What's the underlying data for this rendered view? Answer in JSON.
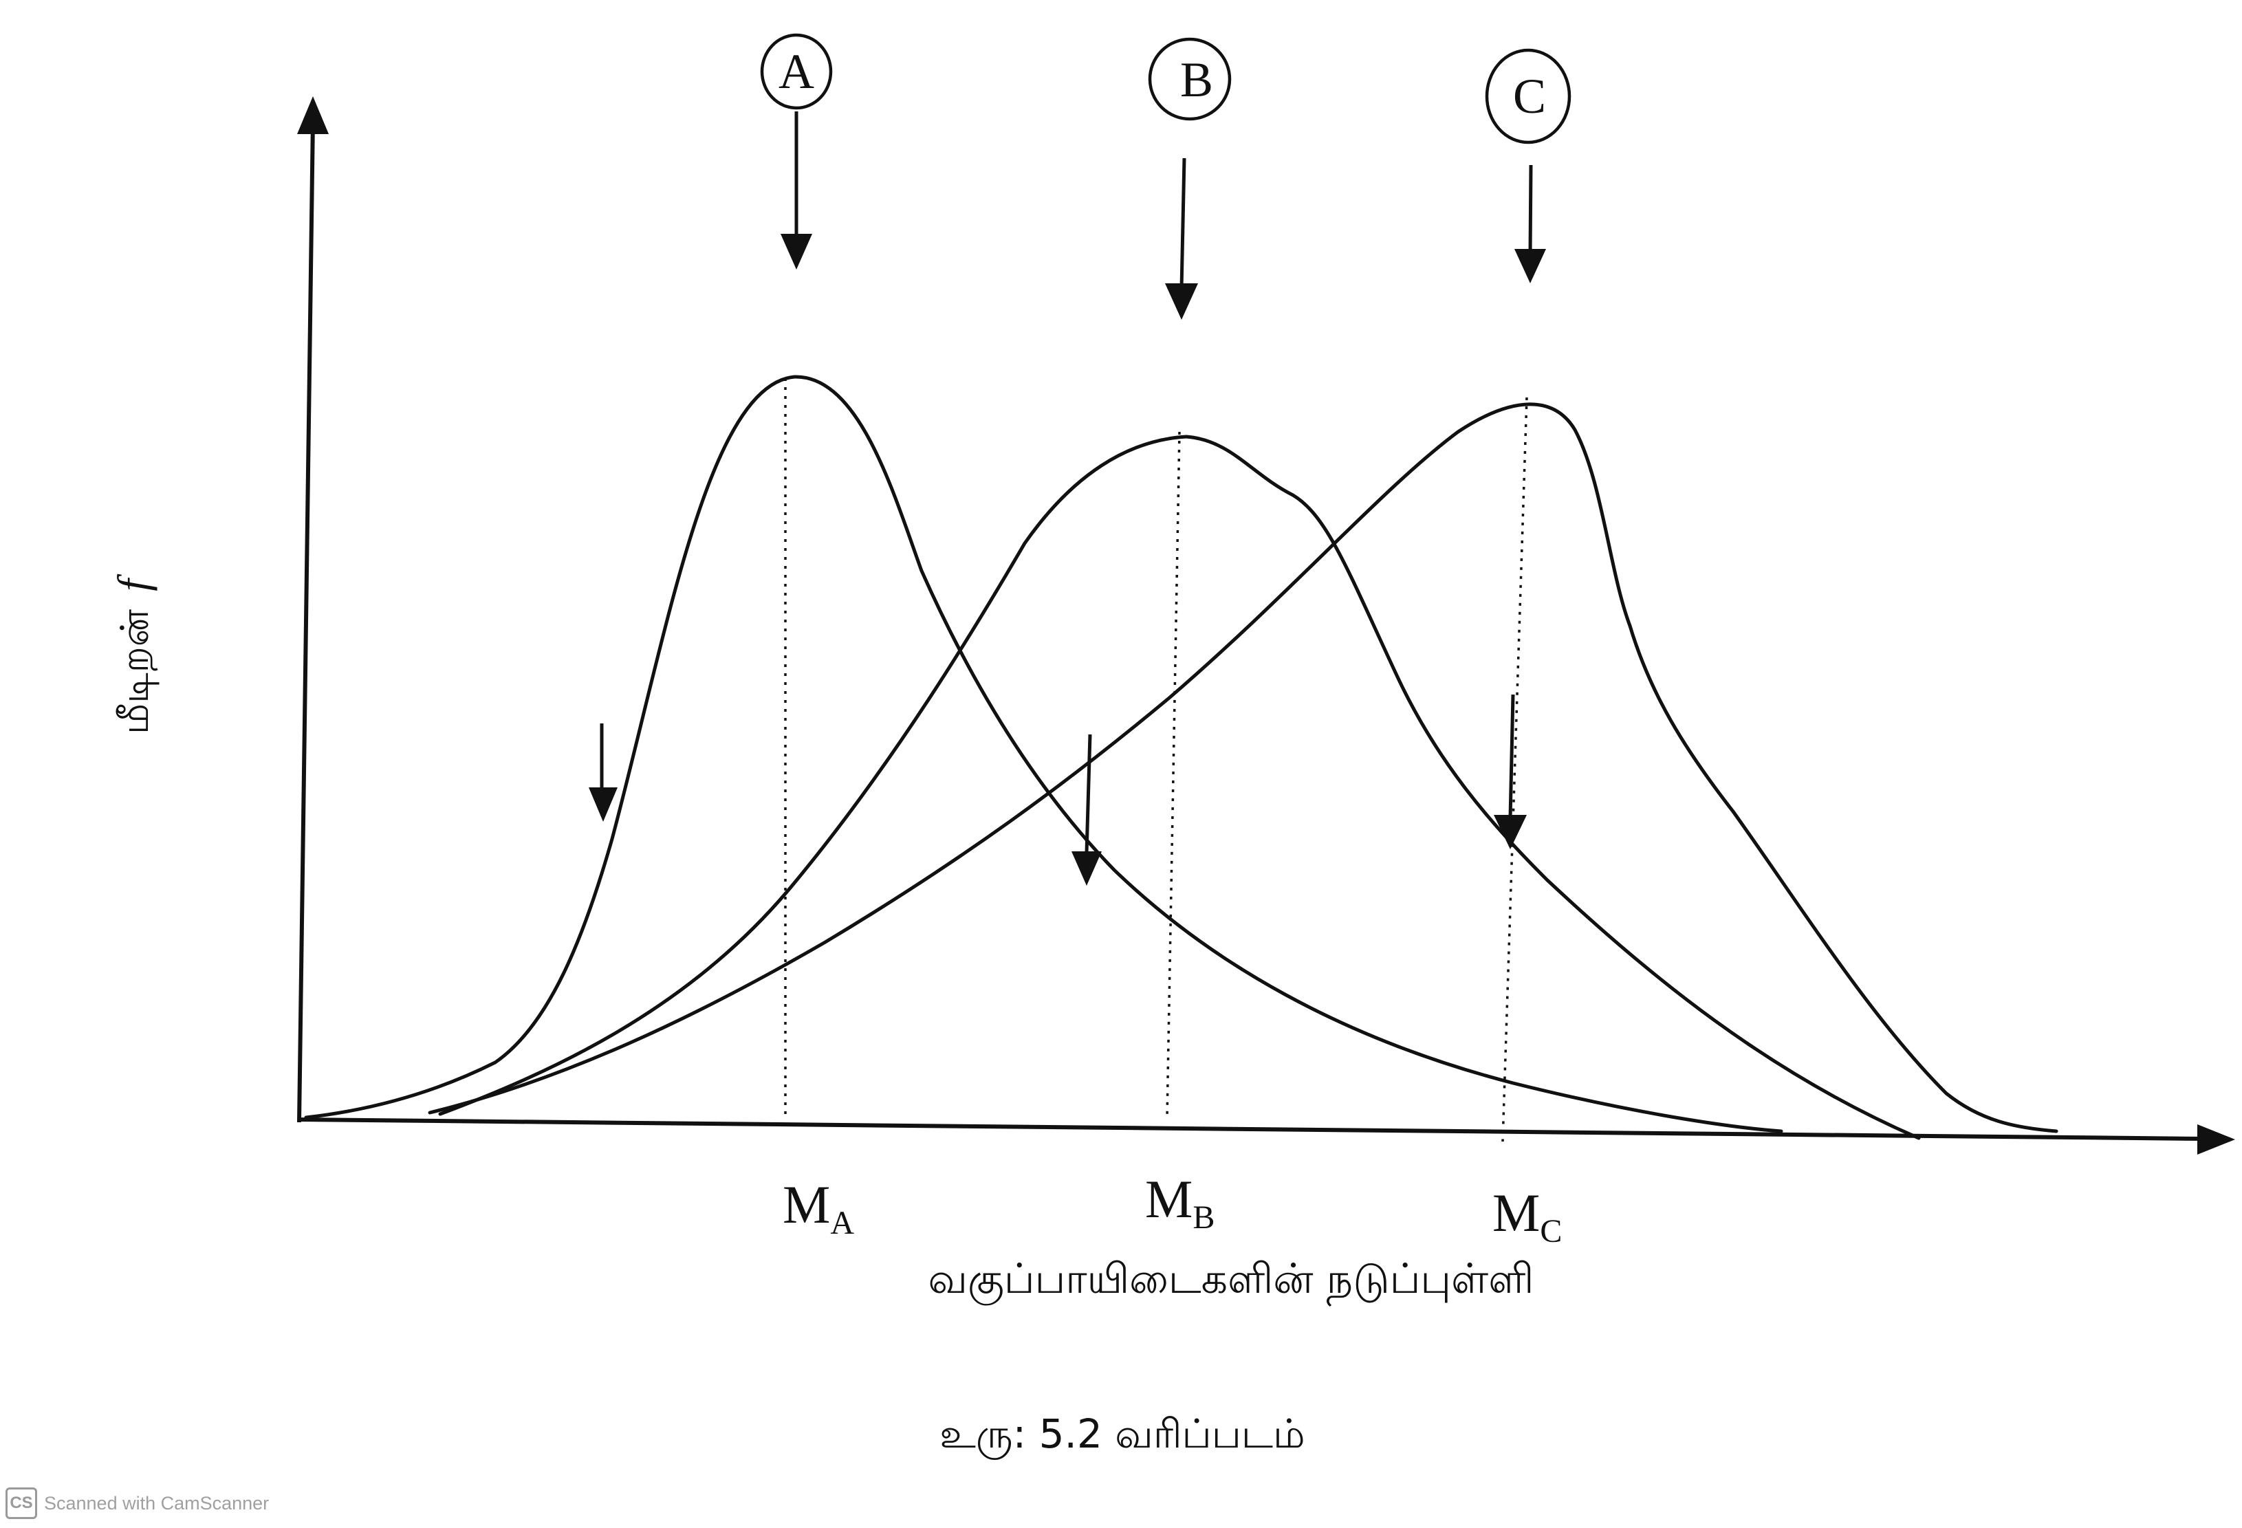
{
  "diagram": {
    "y_axis_label": "மீடிறன்",
    "y_axis_symbol": "f",
    "x_axis_label": "வகுப்பாயிடைகளின் நடுப்புள்ளி",
    "caption": "உரு: 5.2 வரிப்படம்",
    "curves": [
      {
        "id": "A",
        "label": "A",
        "mean_label": "M",
        "mean_subscript": "A"
      },
      {
        "id": "B",
        "label": "B",
        "mean_label": "M",
        "mean_subscript": "B"
      },
      {
        "id": "C",
        "label": "C",
        "mean_label": "M",
        "mean_subscript": "C"
      }
    ]
  },
  "watermark": {
    "logo": "CS",
    "text": "Scanned with CamScanner"
  }
}
